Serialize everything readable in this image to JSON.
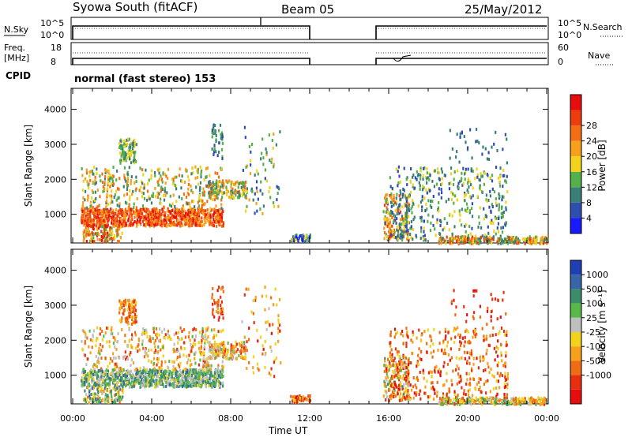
{
  "header": {
    "station": "Syowa South (fitACF)",
    "beam": "Beam 05",
    "date": "25/May/2012"
  },
  "summary_panels": {
    "nsky_label": "N.Sky",
    "nsearch_label": "N.Search",
    "nsky_ticks": [
      "10^5",
      "10^0"
    ],
    "nsky_right_ticks": [
      "10^5",
      "10^0"
    ],
    "freq_label_top": "Freq.",
    "freq_label_bottom": "[MHz]",
    "freq_ticks": [
      "18",
      "8"
    ],
    "nave_label": "Nave",
    "nave_ticks": [
      "60",
      "0"
    ],
    "cpid_label": "CPID",
    "cpid_value": "normal (fast stereo) 153"
  },
  "chart_data": [
    {
      "type": "heatmap",
      "name": "power",
      "ylabel": "Slant Range [km]",
      "xlabel": "",
      "yticks": [
        "1000",
        "2000",
        "3000",
        "4000"
      ],
      "ylim": [
        180,
        4600
      ],
      "x_range_hours": [
        0,
        24
      ],
      "colorbar": {
        "label": "Power [dB]",
        "ticks": [
          "4",
          "8",
          "12",
          "16",
          "20",
          "24",
          "28"
        ],
        "colors": [
          "#1a1aff",
          "#2f4fb0",
          "#3a7f77",
          "#53b04a",
          "#f2d21a",
          "#f7a11a",
          "#f36e12",
          "#ef3b10",
          "#e80d0d"
        ]
      }
    },
    {
      "type": "heatmap",
      "name": "velocity",
      "ylabel": "Slant Range [km]",
      "xlabel": "Time UT",
      "yticks": [
        "1000",
        "2000",
        "3000",
        "4000"
      ],
      "ylim": [
        180,
        4600
      ],
      "x_range_hours": [
        0,
        24
      ],
      "xticks": [
        "00:00",
        "04:00",
        "08:00",
        "12:00",
        "16:00",
        "20:00",
        "00:00"
      ],
      "colorbar": {
        "label": "Velocity [m s⁻¹]",
        "ticks": [
          "1000",
          "500",
          "100",
          "25",
          "-25",
          "-100",
          "-500",
          "-1000"
        ],
        "colors": [
          "#1f3fb5",
          "#3666a8",
          "#3b8c6a",
          "#5ab84a",
          "#bfbfbf",
          "#f2d21a",
          "#f7a11a",
          "#f06c12",
          "#e82d10",
          "#e80d0d"
        ]
      }
    }
  ]
}
